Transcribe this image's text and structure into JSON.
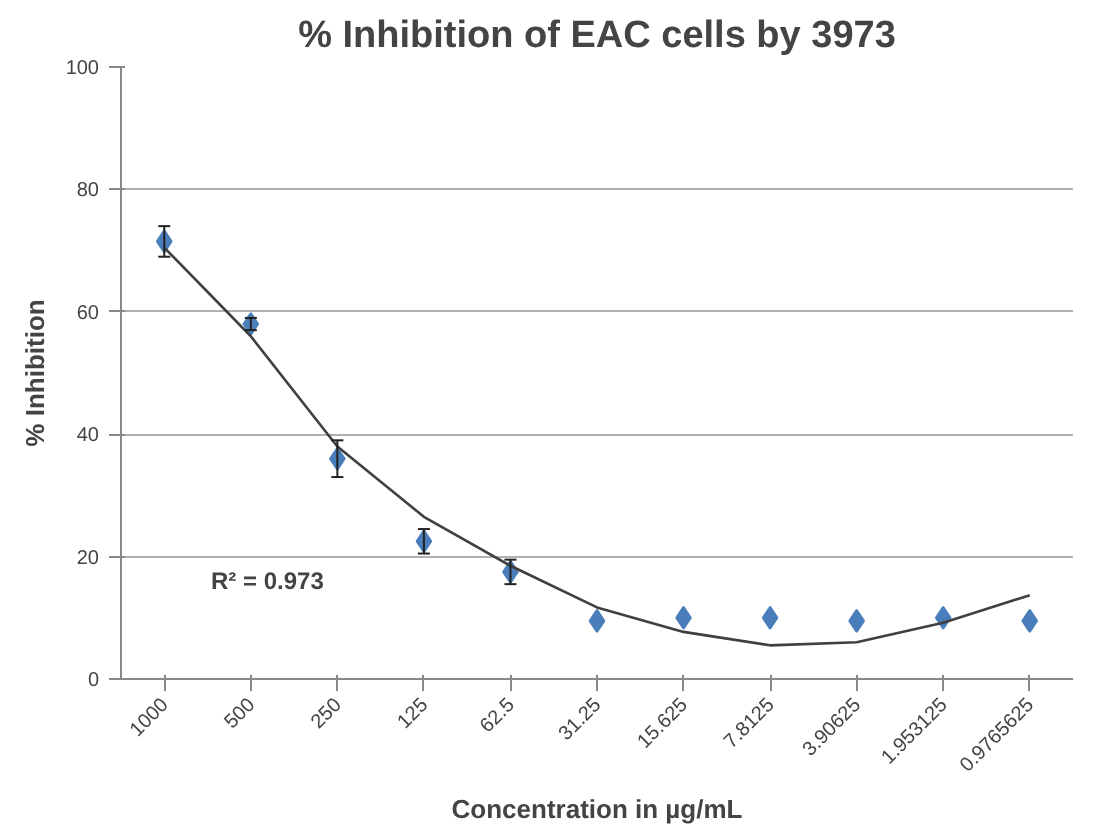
{
  "chart_data": {
    "type": "scatter",
    "title": "% Inhibition of EAC cells by 3973",
    "xlabel": "Concentration in µg/mL",
    "ylabel": "% Inhibition",
    "categories": [
      "1000",
      "500",
      "250",
      "125",
      "62.5",
      "31.25",
      "15.625",
      "7.8125",
      "3.90625",
      "1.953125",
      "0.9765625"
    ],
    "ylim": [
      0,
      100
    ],
    "yticks": [
      0,
      20,
      40,
      60,
      80,
      100
    ],
    "grid": "y",
    "series": [
      {
        "color": "#4a7ebb",
        "marker": "diamond",
        "values": [
          71.5,
          58,
          36,
          22.5,
          17.5,
          9.5,
          10,
          10,
          9.5,
          10,
          9.5
        ],
        "errors": [
          2.5,
          1,
          3,
          2,
          2,
          null,
          null,
          null,
          null,
          null,
          null
        ]
      },
      {
        "type": "line",
        "marker": "none",
        "color": "#404040",
        "values": [
          70.5,
          56,
          38,
          26.5,
          18.5,
          11.7,
          7.7,
          5.5,
          6,
          9.2,
          13.7
        ]
      }
    ],
    "annotations": [
      "R² = 0.973"
    ]
  }
}
